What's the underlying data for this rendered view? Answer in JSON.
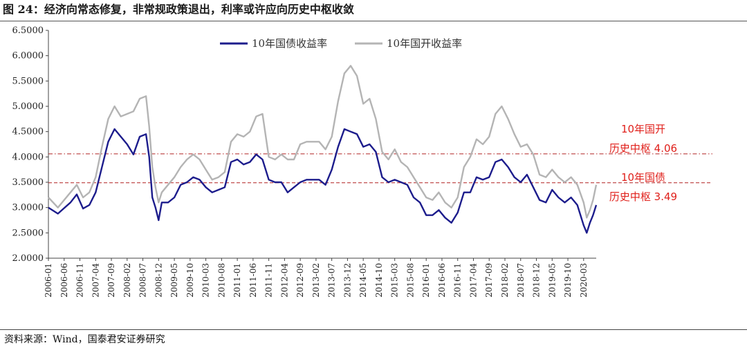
{
  "figure": {
    "title": "图 24：经济向常态修复，非常规政策退出，利率或许应向历史中枢收敛",
    "source": "资料来源：Wind，国泰君安证券研究"
  },
  "chart_data": {
    "type": "line",
    "title": "",
    "xlabel": "",
    "ylabel": "",
    "ylim": [
      2.0,
      6.5
    ],
    "y_ticks": [
      "2.0000",
      "2.5000",
      "3.0000",
      "3.5000",
      "4.0000",
      "4.5000",
      "5.0000",
      "5.5000",
      "6.0000",
      "6.5000"
    ],
    "x_range": [
      "2006-01",
      "2020-07"
    ],
    "x_ticks": [
      "2006-01",
      "2006-06",
      "2006-11",
      "2007-04",
      "2007-09",
      "2008-02",
      "2008-07",
      "2008-12",
      "2009-05",
      "2009-10",
      "2010-03",
      "2010-08",
      "2011-01",
      "2011-06",
      "2011-11",
      "2012-04",
      "2012-09",
      "2013-02",
      "2013-07",
      "2013-12",
      "2014-05",
      "2014-10",
      "2015-03",
      "2015-08",
      "2016-01",
      "2016-06",
      "2016-11",
      "2017-04",
      "2017-09",
      "2018-02",
      "2018-07",
      "2018-12",
      "2019-05",
      "2019-10",
      "2020-03"
    ],
    "grid": false,
    "legend_position": "top",
    "series": [
      {
        "name": "10年国债收益率",
        "color": "#1c1c8c",
        "points": [
          [
            "2006-01",
            3.0
          ],
          [
            "2006-04",
            2.88
          ],
          [
            "2006-08",
            3.1
          ],
          [
            "2006-10",
            3.26
          ],
          [
            "2006-12",
            2.98
          ],
          [
            "2007-02",
            3.05
          ],
          [
            "2007-04",
            3.3
          ],
          [
            "2007-06",
            3.8
          ],
          [
            "2007-08",
            4.3
          ],
          [
            "2007-10",
            4.55
          ],
          [
            "2007-12",
            4.4
          ],
          [
            "2008-02",
            4.25
          ],
          [
            "2008-04",
            4.05
          ],
          [
            "2008-06",
            4.4
          ],
          [
            "2008-08",
            4.45
          ],
          [
            "2008-09",
            4.0
          ],
          [
            "2008-10",
            3.2
          ],
          [
            "2008-11",
            3.0
          ],
          [
            "2008-12",
            2.75
          ],
          [
            "2009-01",
            3.1
          ],
          [
            "2009-03",
            3.1
          ],
          [
            "2009-05",
            3.2
          ],
          [
            "2009-07",
            3.45
          ],
          [
            "2009-09",
            3.5
          ],
          [
            "2009-11",
            3.6
          ],
          [
            "2010-01",
            3.55
          ],
          [
            "2010-03",
            3.4
          ],
          [
            "2010-05",
            3.3
          ],
          [
            "2010-07",
            3.35
          ],
          [
            "2010-09",
            3.4
          ],
          [
            "2010-11",
            3.9
          ],
          [
            "2011-01",
            3.95
          ],
          [
            "2011-03",
            3.85
          ],
          [
            "2011-05",
            3.9
          ],
          [
            "2011-07",
            4.05
          ],
          [
            "2011-09",
            3.95
          ],
          [
            "2011-11",
            3.55
          ],
          [
            "2012-01",
            3.5
          ],
          [
            "2012-03",
            3.5
          ],
          [
            "2012-05",
            3.3
          ],
          [
            "2012-07",
            3.4
          ],
          [
            "2012-09",
            3.5
          ],
          [
            "2012-11",
            3.55
          ],
          [
            "2013-01",
            3.55
          ],
          [
            "2013-03",
            3.55
          ],
          [
            "2013-05",
            3.45
          ],
          [
            "2013-07",
            3.75
          ],
          [
            "2013-09",
            4.2
          ],
          [
            "2013-11",
            4.55
          ],
          [
            "2014-01",
            4.5
          ],
          [
            "2014-03",
            4.45
          ],
          [
            "2014-05",
            4.2
          ],
          [
            "2014-07",
            4.25
          ],
          [
            "2014-09",
            4.1
          ],
          [
            "2014-11",
            3.6
          ],
          [
            "2015-01",
            3.5
          ],
          [
            "2015-03",
            3.55
          ],
          [
            "2015-05",
            3.5
          ],
          [
            "2015-07",
            3.45
          ],
          [
            "2015-09",
            3.2
          ],
          [
            "2015-11",
            3.1
          ],
          [
            "2016-01",
            2.85
          ],
          [
            "2016-03",
            2.85
          ],
          [
            "2016-05",
            2.95
          ],
          [
            "2016-07",
            2.8
          ],
          [
            "2016-09",
            2.7
          ],
          [
            "2016-11",
            2.9
          ],
          [
            "2017-01",
            3.3
          ],
          [
            "2017-03",
            3.3
          ],
          [
            "2017-05",
            3.6
          ],
          [
            "2017-07",
            3.55
          ],
          [
            "2017-09",
            3.6
          ],
          [
            "2017-11",
            3.9
          ],
          [
            "2018-01",
            3.95
          ],
          [
            "2018-03",
            3.8
          ],
          [
            "2018-05",
            3.6
          ],
          [
            "2018-07",
            3.5
          ],
          [
            "2018-09",
            3.65
          ],
          [
            "2018-11",
            3.4
          ],
          [
            "2019-01",
            3.15
          ],
          [
            "2019-03",
            3.1
          ],
          [
            "2019-05",
            3.35
          ],
          [
            "2019-07",
            3.2
          ],
          [
            "2019-09",
            3.1
          ],
          [
            "2019-11",
            3.2
          ],
          [
            "2020-01",
            3.05
          ],
          [
            "2020-03",
            2.65
          ],
          [
            "2020-04",
            2.5
          ],
          [
            "2020-05",
            2.7
          ],
          [
            "2020-06",
            2.85
          ],
          [
            "2020-07",
            3.05
          ]
        ]
      },
      {
        "name": "10年国开收益率",
        "color": "#b4b4b4",
        "points": [
          [
            "2006-01",
            3.2
          ],
          [
            "2006-04",
            3.0
          ],
          [
            "2006-08",
            3.3
          ],
          [
            "2006-10",
            3.45
          ],
          [
            "2006-12",
            3.2
          ],
          [
            "2007-02",
            3.3
          ],
          [
            "2007-04",
            3.6
          ],
          [
            "2007-06",
            4.2
          ],
          [
            "2007-08",
            4.75
          ],
          [
            "2007-10",
            5.0
          ],
          [
            "2007-12",
            4.8
          ],
          [
            "2008-02",
            4.85
          ],
          [
            "2008-04",
            4.9
          ],
          [
            "2008-06",
            5.15
          ],
          [
            "2008-08",
            5.2
          ],
          [
            "2008-09",
            4.6
          ],
          [
            "2008-10",
            3.8
          ],
          [
            "2008-11",
            3.4
          ],
          [
            "2008-12",
            3.1
          ],
          [
            "2009-01",
            3.3
          ],
          [
            "2009-03",
            3.45
          ],
          [
            "2009-05",
            3.6
          ],
          [
            "2009-07",
            3.8
          ],
          [
            "2009-09",
            3.95
          ],
          [
            "2009-11",
            4.05
          ],
          [
            "2010-01",
            3.95
          ],
          [
            "2010-03",
            3.75
          ],
          [
            "2010-05",
            3.55
          ],
          [
            "2010-07",
            3.6
          ],
          [
            "2010-09",
            3.7
          ],
          [
            "2010-11",
            4.3
          ],
          [
            "2011-01",
            4.45
          ],
          [
            "2011-03",
            4.4
          ],
          [
            "2011-05",
            4.5
          ],
          [
            "2011-07",
            4.8
          ],
          [
            "2011-09",
            4.85
          ],
          [
            "2011-11",
            4.0
          ],
          [
            "2012-01",
            3.95
          ],
          [
            "2012-03",
            4.05
          ],
          [
            "2012-05",
            3.95
          ],
          [
            "2012-07",
            3.95
          ],
          [
            "2012-09",
            4.25
          ],
          [
            "2012-11",
            4.3
          ],
          [
            "2013-01",
            4.3
          ],
          [
            "2013-03",
            4.3
          ],
          [
            "2013-05",
            4.15
          ],
          [
            "2013-07",
            4.4
          ],
          [
            "2013-09",
            5.1
          ],
          [
            "2013-11",
            5.65
          ],
          [
            "2014-01",
            5.8
          ],
          [
            "2014-03",
            5.6
          ],
          [
            "2014-05",
            5.05
          ],
          [
            "2014-07",
            5.15
          ],
          [
            "2014-09",
            4.75
          ],
          [
            "2014-11",
            4.1
          ],
          [
            "2015-01",
            3.95
          ],
          [
            "2015-03",
            4.15
          ],
          [
            "2015-05",
            3.9
          ],
          [
            "2015-07",
            3.8
          ],
          [
            "2015-09",
            3.6
          ],
          [
            "2015-11",
            3.4
          ],
          [
            "2016-01",
            3.2
          ],
          [
            "2016-03",
            3.15
          ],
          [
            "2016-05",
            3.3
          ],
          [
            "2016-07",
            3.1
          ],
          [
            "2016-09",
            3.0
          ],
          [
            "2016-11",
            3.2
          ],
          [
            "2017-01",
            3.8
          ],
          [
            "2017-03",
            4.0
          ],
          [
            "2017-05",
            4.35
          ],
          [
            "2017-07",
            4.25
          ],
          [
            "2017-09",
            4.4
          ],
          [
            "2017-11",
            4.85
          ],
          [
            "2018-01",
            5.0
          ],
          [
            "2018-03",
            4.75
          ],
          [
            "2018-05",
            4.45
          ],
          [
            "2018-07",
            4.2
          ],
          [
            "2018-09",
            4.25
          ],
          [
            "2018-11",
            4.05
          ],
          [
            "2019-01",
            3.65
          ],
          [
            "2019-03",
            3.6
          ],
          [
            "2019-05",
            3.75
          ],
          [
            "2019-07",
            3.6
          ],
          [
            "2019-09",
            3.5
          ],
          [
            "2019-11",
            3.6
          ],
          [
            "2020-01",
            3.45
          ],
          [
            "2020-03",
            3.1
          ],
          [
            "2020-04",
            2.8
          ],
          [
            "2020-05",
            2.95
          ],
          [
            "2020-06",
            3.15
          ],
          [
            "2020-07",
            3.45
          ]
        ]
      }
    ],
    "reference_lines": [
      {
        "series_color": "#b4b4b4",
        "value": 4.06,
        "style": "dash-dot",
        "color": "#b02020",
        "label_line1": "10年国开",
        "label_line2": "历史中枢 4.06"
      },
      {
        "series_color": "#1c1c8c",
        "value": 3.49,
        "style": "dashed",
        "color": "#b02020",
        "label_line1": "10年国债",
        "label_line2": "历史中枢 3.49"
      }
    ]
  }
}
